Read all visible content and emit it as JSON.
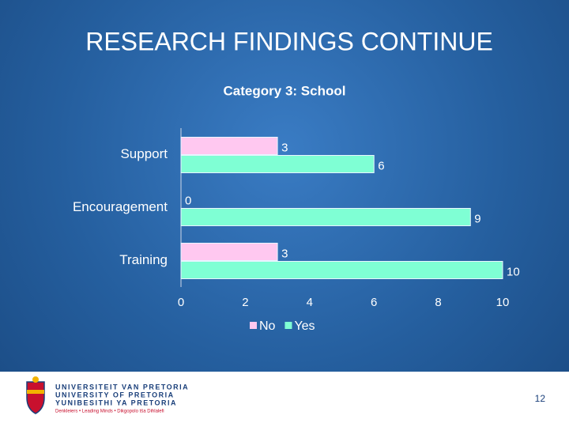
{
  "title": "RESEARCH FINDINGS CONTINUE",
  "chart_data": {
    "type": "hbar",
    "title": "Category 3: School",
    "categories": [
      "Support",
      "Encouragement",
      "Training"
    ],
    "series": [
      {
        "name": "No",
        "color": "#ffc8f0",
        "values": [
          3,
          0,
          3
        ]
      },
      {
        "name": "Yes",
        "color": "#7fffd4",
        "values": [
          6,
          9,
          10
        ]
      }
    ],
    "xlim": [
      0,
      10
    ],
    "xticks": [
      0,
      2,
      4,
      6,
      8,
      10
    ],
    "grid": false,
    "legend": "bottom"
  },
  "footer": {
    "university": [
      "UNIVERSITEIT VAN PRETORIA",
      "UNIVERSITY OF PRETORIA",
      "YUNIBESITHI YA PRETORIA"
    ],
    "tagline": "Denkleiers • Leading Minds • Dikgopolo tša Dihlalefi",
    "page_number": "12"
  }
}
